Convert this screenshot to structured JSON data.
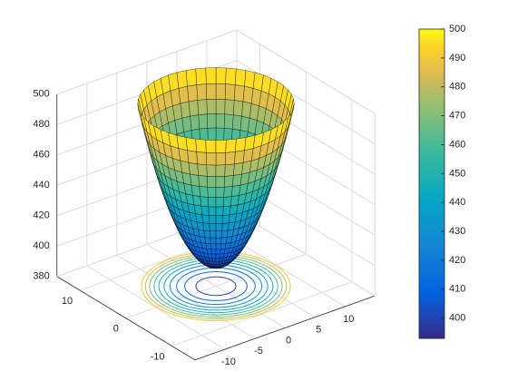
{
  "chart_data": {
    "type": "surface",
    "xlim": [
      -15,
      15
    ],
    "xticks": [
      -10,
      -5,
      0,
      5,
      10
    ],
    "ylim": [
      -15,
      15
    ],
    "yticks": [
      -10,
      0,
      10
    ],
    "zlim": [
      380,
      500
    ],
    "zticks": [
      380,
      400,
      420,
      440,
      460,
      480,
      500
    ],
    "clim": [
      393,
      500
    ],
    "cticks": [
      400,
      410,
      420,
      430,
      440,
      450,
      460,
      470,
      480,
      490,
      500
    ],
    "contour_levels": [
      400,
      410,
      420,
      430,
      440,
      450,
      460,
      470,
      480,
      490
    ],
    "view": [
      -37.5,
      30
    ],
    "grid": true,
    "colormap": "parula",
    "colorbar": true
  }
}
